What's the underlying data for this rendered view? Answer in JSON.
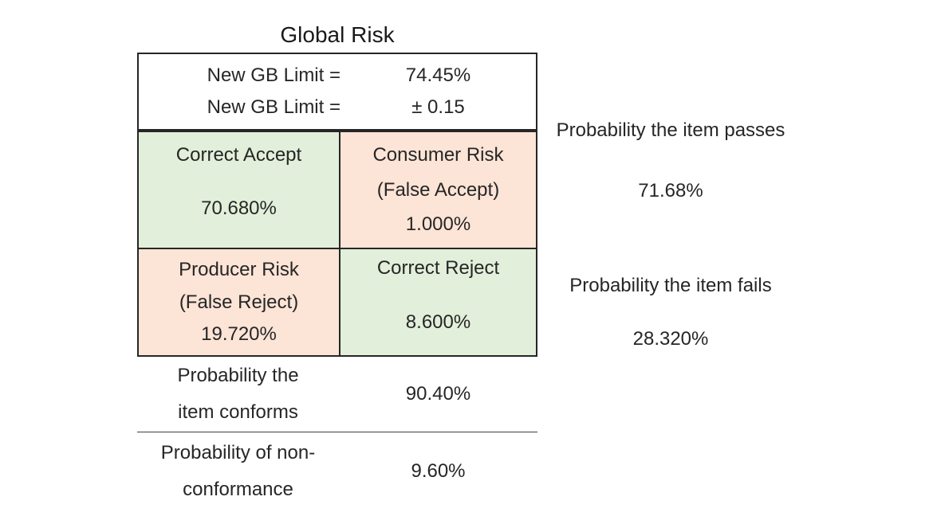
{
  "title": "Global Risk",
  "header": {
    "rows": [
      {
        "label": "New GB Limit =",
        "value": "74.45%"
      },
      {
        "label": "New GB Limit =",
        "value": "± 0.15"
      }
    ]
  },
  "matrix": {
    "colors": {
      "good": "#e2efda",
      "risk": "#fce4d6",
      "border": "#262626"
    },
    "cells": [
      {
        "title": "Correct Accept",
        "subtitle": "",
        "value": "70.680%",
        "tone": "good"
      },
      {
        "title": "Consumer Risk",
        "subtitle": "(False Accept)",
        "value": "1.000%",
        "tone": "risk"
      },
      {
        "title": "Producer Risk",
        "subtitle": "(False Reject)",
        "value": "19.720%",
        "tone": "risk"
      },
      {
        "title": "Correct Reject",
        "subtitle": "",
        "value": "8.600%",
        "tone": "good"
      }
    ]
  },
  "summary": [
    {
      "label_line1": "Probability the",
      "label_line2": "item conforms",
      "value": "90.40%"
    },
    {
      "label_line1": "Probability of non-",
      "label_line2": "conformance",
      "value": "9.60%"
    }
  ],
  "side": [
    {
      "label": "Probability the item passes",
      "value": "71.68%"
    },
    {
      "label": "Probability the item fails",
      "value": "28.320%"
    }
  ]
}
